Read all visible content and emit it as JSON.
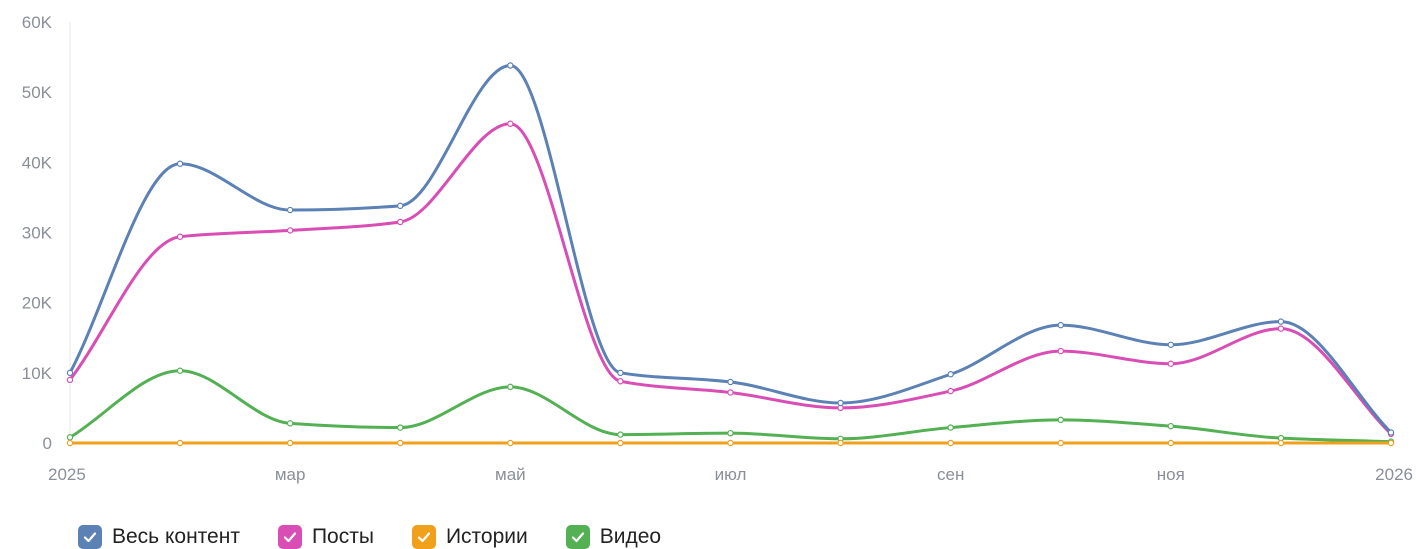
{
  "chart_data": {
    "type": "line",
    "y_ticks": [
      "0",
      "10K",
      "20K",
      "30K",
      "40K",
      "50K",
      "60K"
    ],
    "ylim": [
      0,
      60000
    ],
    "x_ticks": [
      "2025",
      "мар",
      "май",
      "июл",
      "сен",
      "ноя",
      "2026"
    ],
    "x": [
      "2025-01",
      "2025-02",
      "2025-03",
      "2025-04",
      "2025-05",
      "2025-06",
      "2025-07",
      "2025-08",
      "2025-09",
      "2025-10",
      "2025-11",
      "2025-12",
      "2026-01"
    ],
    "grid": false,
    "legend_position": "bottom-left",
    "series": [
      {
        "name": "Весь контент",
        "color": "#5b81b5",
        "values": [
          10000,
          39800,
          33200,
          33800,
          53800,
          10000,
          8700,
          5700,
          9800,
          16800,
          14000,
          17300,
          1500
        ]
      },
      {
        "name": "Посты",
        "color": "#d94eb5",
        "values": [
          9000,
          29400,
          30300,
          31500,
          45500,
          8800,
          7200,
          5000,
          7400,
          13100,
          11300,
          16300,
          1300
        ]
      },
      {
        "name": "Истории",
        "color": "#f0a01a",
        "values": [
          0,
          0,
          0,
          0,
          0,
          0,
          0,
          0,
          0,
          0,
          0,
          0,
          0
        ]
      },
      {
        "name": "Видео",
        "color": "#53b053",
        "values": [
          800,
          10300,
          2800,
          2200,
          8000,
          1200,
          1400,
          600,
          2200,
          3300,
          2400,
          700,
          200
        ]
      }
    ]
  },
  "legend": {
    "checked_icon": "checkmark-icon"
  }
}
